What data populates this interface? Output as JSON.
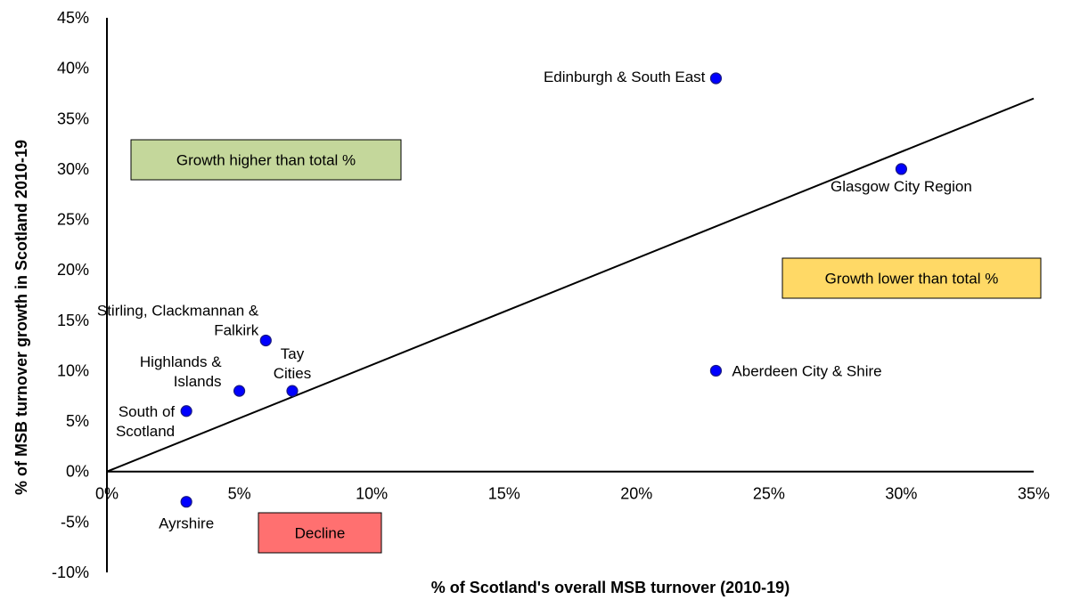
{
  "chart_data": {
    "type": "scatter",
    "title": "",
    "xlabel": "% of Scotland's overall MSB turnover (2010-19)",
    "ylabel": "% of  MSB turnover growth in Scotland 2010-19",
    "xlim": [
      0,
      35
    ],
    "ylim": [
      -10,
      45
    ],
    "x_ticks": [
      "0%",
      "5%",
      "10%",
      "15%",
      "20%",
      "25%",
      "30%",
      "35%"
    ],
    "y_ticks": [
      "-10%",
      "-5%",
      "0%",
      "5%",
      "10%",
      "15%",
      "20%",
      "25%",
      "30%",
      "35%",
      "40%",
      "45%"
    ],
    "grid": false,
    "point_color": "#0000ff",
    "points": [
      {
        "label": [
          "Edinburgh & South East"
        ],
        "x": 23,
        "y": 39
      },
      {
        "label": [
          "Glasgow City Region"
        ],
        "x": 30,
        "y": 30
      },
      {
        "label": [
          "Aberdeen City & Shire"
        ],
        "x": 23,
        "y": 10
      },
      {
        "label": [
          "Stirling, Clackmannan &",
          "Falkirk"
        ],
        "x": 6,
        "y": 13
      },
      {
        "label": [
          "Tay",
          "Cities"
        ],
        "x": 7,
        "y": 8
      },
      {
        "label": [
          "Highlands &",
          "Islands"
        ],
        "x": 5,
        "y": 8
      },
      {
        "label": [
          "South of",
          "Scotland"
        ],
        "x": 3,
        "y": 6
      },
      {
        "label": [
          "Ayrshire"
        ],
        "x": 3,
        "y": -3
      }
    ],
    "reference_line": {
      "from": [
        0,
        0
      ],
      "to": [
        35,
        37
      ]
    },
    "annotations": [
      {
        "text": "Growth higher than total %",
        "color": "#c4d79b"
      },
      {
        "text": "Growth lower than total %",
        "color": "#ffd966"
      },
      {
        "text": "Decline",
        "color": "#ff7070"
      }
    ]
  }
}
